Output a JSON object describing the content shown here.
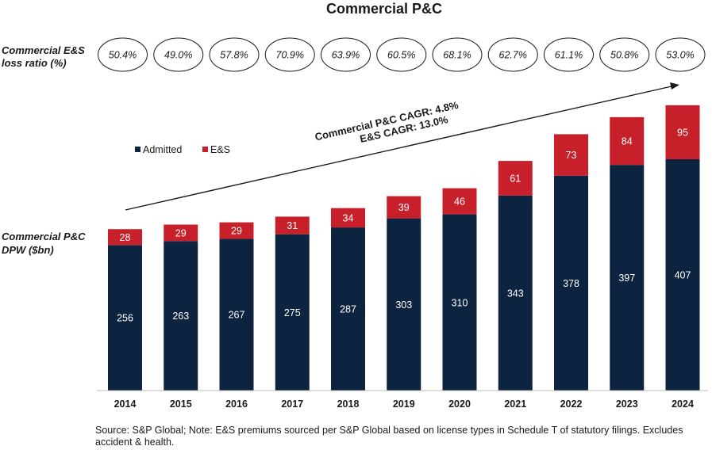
{
  "chart_data": {
    "type": "bar",
    "stacked": true,
    "title": "Commercial P&C",
    "categories": [
      "2014",
      "2015",
      "2016",
      "2017",
      "2018",
      "2019",
      "2020",
      "2021",
      "2022",
      "2023",
      "2024"
    ],
    "series": [
      {
        "name": "Admitted",
        "color": "#0d2440",
        "values": [
          256,
          263,
          267,
          275,
          287,
          303,
          310,
          343,
          378,
          397,
          407
        ]
      },
      {
        "name": "E&S",
        "color": "#c8202b",
        "values": [
          28,
          29,
          29,
          31,
          34,
          39,
          46,
          61,
          73,
          84,
          95
        ]
      }
    ],
    "ylabel": "Commercial P&C DPW ($bn)",
    "ylabel_lines": [
      "Commercial P&C",
      "DPW ($bn)"
    ],
    "ylim": [
      0,
      502
    ],
    "loss_ratio_label": "Commercial E&S loss ratio (%)",
    "loss_ratio_label_lines": [
      "Commercial E&S",
      "loss ratio (%)"
    ],
    "loss_ratios": [
      "50.4%",
      "49.0%",
      "57.8%",
      "70.9%",
      "63.9%",
      "60.5%",
      "68.1%",
      "62.7%",
      "61.1%",
      "50.8%",
      "53.0%"
    ],
    "annotations": [
      "Commercial P&C CAGR: 4.8%",
      "E&S CAGR: 13.0%"
    ],
    "legend_position": "top-left"
  },
  "source_text": "Source: S&P Global; Note: E&S premiums sourced per S&P Global based on license types in Schedule T of statutory filings. Excludes accident & health."
}
